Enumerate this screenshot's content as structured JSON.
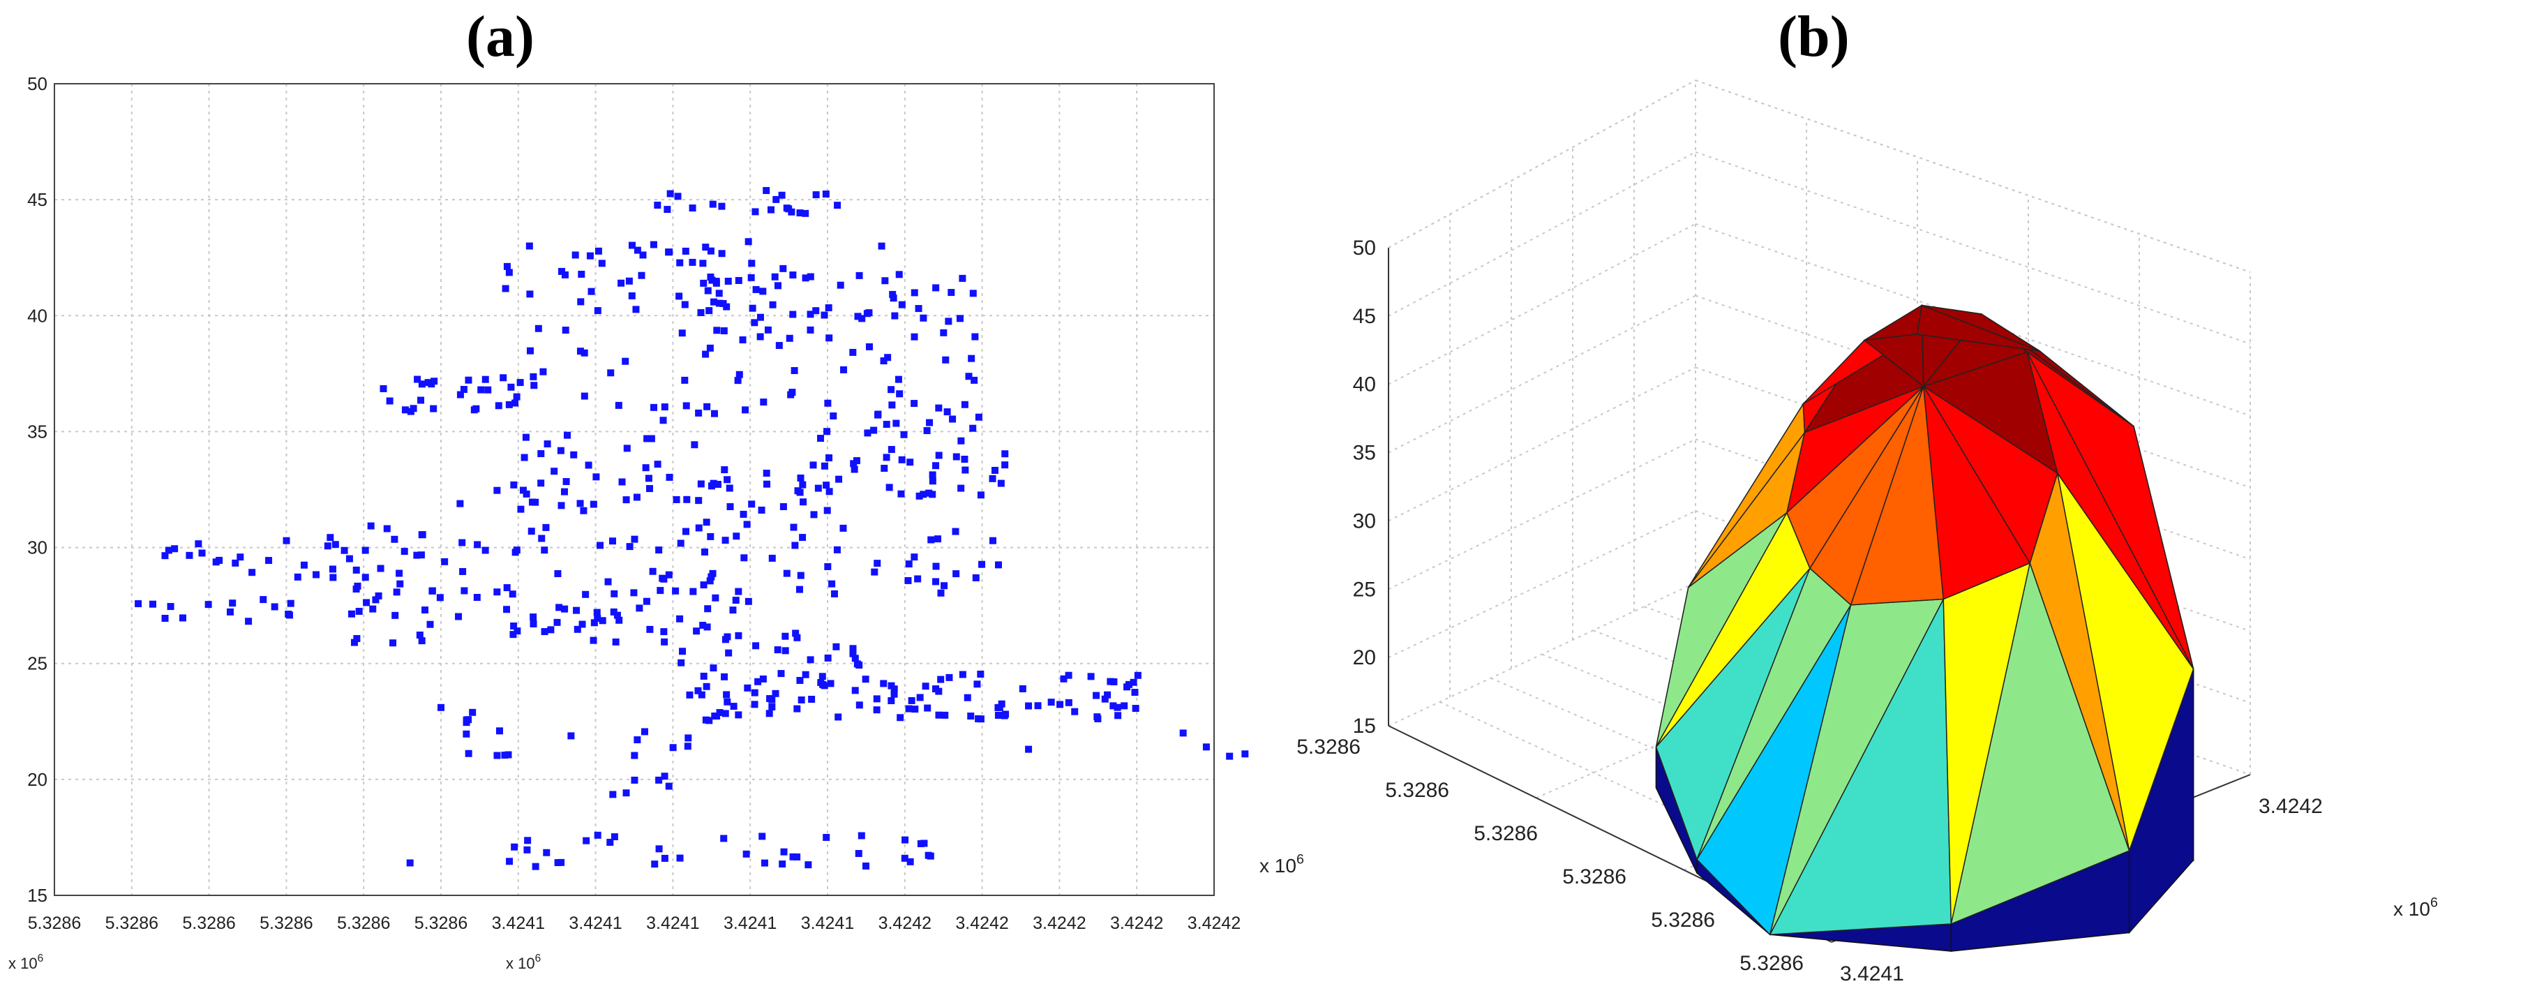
{
  "panels": {
    "a": {
      "label_open": "(",
      "label_letter": "a",
      "label_close": ")"
    },
    "b": {
      "label_open": "(",
      "label_letter": "b",
      "label_close": ")"
    }
  },
  "chart_data": [
    {
      "type": "scatter",
      "panel": "a",
      "title": "",
      "xlabel": "",
      "ylabel": "",
      "ylim": [
        15,
        50
      ],
      "yticks": [
        "15",
        "20",
        "25",
        "30",
        "35",
        "40",
        "45",
        "50"
      ],
      "x_tick_labels": [
        "5.3286",
        "5.3286",
        "5.3286",
        "5.3286",
        "5.3286",
        "5.3286",
        "3.4241",
        "3.4241",
        "3.4241",
        "3.4241",
        "3.4241",
        "3.4242",
        "3.4242",
        "3.4242",
        "3.4242",
        "3.4242"
      ],
      "x_exponent_labels": [
        "x 10^6",
        "x 10^6"
      ],
      "grid": true,
      "color": "#1010ff",
      "x_index_range": [
        0,
        15
      ],
      "clusters": [
        {
          "x": [
            7.5,
            10.2
          ],
          "y": [
            44.2,
            45.4
          ],
          "n": 20
        },
        {
          "x": [
            5.8,
            9.8
          ],
          "y": [
            40.2,
            43.2
          ],
          "n": 50
        },
        {
          "x": [
            8.2,
            12.0
          ],
          "y": [
            39.0,
            41.8
          ],
          "n": 45
        },
        {
          "x": [
            4.2,
            6.4
          ],
          "y": [
            35.8,
            37.4
          ],
          "n": 28
        },
        {
          "x": [
            6.0,
            12.0
          ],
          "y": [
            33.0,
            39.5
          ],
          "n": 85
        },
        {
          "x": [
            9.8,
            12.4
          ],
          "y": [
            32.2,
            35.8
          ],
          "n": 35
        },
        {
          "x": [
            5.2,
            10.2
          ],
          "y": [
            31.4,
            33.0
          ],
          "n": 45
        },
        {
          "x": [
            1.2,
            3.8
          ],
          "y": [
            28.6,
            30.6
          ],
          "n": 22
        },
        {
          "x": [
            3.8,
            12.4
          ],
          "y": [
            28.0,
            31.2
          ],
          "n": 90
        },
        {
          "x": [
            1.0,
            3.2
          ],
          "y": [
            26.8,
            27.8
          ],
          "n": 14
        },
        {
          "x": [
            3.8,
            9.0
          ],
          "y": [
            25.8,
            28.2
          ],
          "n": 60
        },
        {
          "x": [
            7.8,
            10.6
          ],
          "y": [
            24.0,
            26.8
          ],
          "n": 25
        },
        {
          "x": [
            8.2,
            14.2
          ],
          "y": [
            22.6,
            24.6
          ],
          "n": 95
        },
        {
          "x": [
            5.2,
            8.8
          ],
          "y": [
            21.0,
            23.0
          ],
          "n": 20
        },
        {
          "x": [
            7.2,
            8.8
          ],
          "y": [
            19.0,
            21.0
          ],
          "n": 6
        },
        {
          "x": [
            5.4,
            11.4
          ],
          "y": [
            16.2,
            17.6
          ],
          "n": 35
        }
      ],
      "points": [
        {
          "x": 14.6,
          "y": 22.0
        },
        {
          "x": 14.9,
          "y": 21.4
        },
        {
          "x": 15.2,
          "y": 21.0
        },
        {
          "x": 15.4,
          "y": 21.1
        },
        {
          "x": 4.6,
          "y": 16.4
        },
        {
          "x": 11.0,
          "y": 16.6
        },
        {
          "x": 5.0,
          "y": 23.1
        },
        {
          "x": 12.6,
          "y": 21.3
        },
        {
          "x": 10.7,
          "y": 43.0
        },
        {
          "x": 11.4,
          "y": 41.2
        },
        {
          "x": 11.6,
          "y": 41.0
        }
      ]
    },
    {
      "type": "surface3d",
      "panel": "b",
      "title": "",
      "zlim": [
        15,
        50
      ],
      "zticks": [
        "15",
        "20",
        "25",
        "30",
        "35",
        "40",
        "45",
        "50"
      ],
      "x_tick_labels": [
        "5.3286",
        "5.3286",
        "5.3286",
        "5.3286",
        "5.3286",
        "5.3286"
      ],
      "y_tick_labels": [
        "3.4241",
        "3.4242",
        "3.4242"
      ],
      "x_exponent_label": "x 10^6",
      "y_exponent_label": "x 10^6",
      "grid": true,
      "colormap": [
        "#00008f",
        "#00c8ff",
        "#40e0c8",
        "#8ee88a",
        "#ffff00",
        "#ffa000",
        "#ff6000",
        "#ff0000",
        "#a00000"
      ],
      "surface_rim": [
        {
          "x": 0.0,
          "y": 0.42,
          "z": 26.0
        },
        {
          "x": 0.08,
          "y": 0.18,
          "z": 38.0
        },
        {
          "x": 0.2,
          "y": 0.02,
          "z": 43.0
        },
        {
          "x": 0.42,
          "y": 0.0,
          "z": 44.5
        },
        {
          "x": 0.62,
          "y": 0.03,
          "z": 42.0
        },
        {
          "x": 0.88,
          "y": 0.22,
          "z": 30.0
        },
        {
          "x": 1.0,
          "y": 0.52,
          "z": 22.0
        },
        {
          "x": 0.86,
          "y": 0.8,
          "z": 18.0
        },
        {
          "x": 0.62,
          "y": 1.0,
          "z": 16.0
        },
        {
          "x": 0.38,
          "y": 0.92,
          "z": 17.0
        },
        {
          "x": 0.12,
          "y": 0.7,
          "z": 19.0
        }
      ],
      "surface_peak": {
        "x": 0.4,
        "y": 0.3,
        "z": 45.0
      }
    }
  ]
}
